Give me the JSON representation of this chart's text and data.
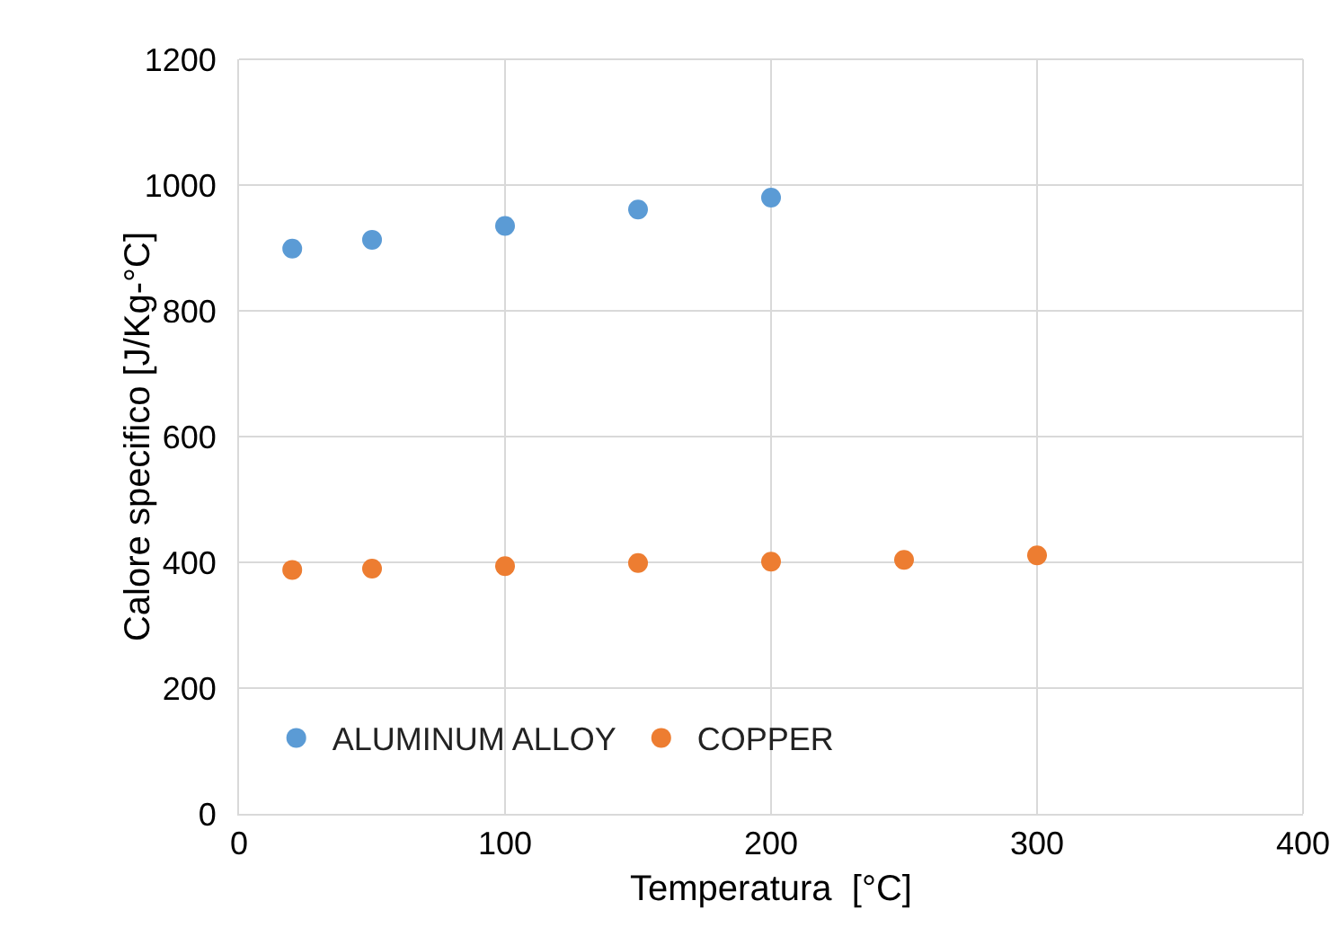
{
  "chart_data": {
    "type": "scatter",
    "xlabel": "Temperatura  [°C]",
    "ylabel": "Calore specifico [J/Kg-°C]",
    "xlim": [
      0,
      400
    ],
    "xticks": [
      0,
      100,
      200,
      300,
      400
    ],
    "ylim": [
      0,
      1200
    ],
    "yticks": [
      0,
      200,
      400,
      600,
      800,
      1000,
      1200
    ],
    "grid": true,
    "legend": "bottom left",
    "marker": "circle",
    "series": [
      {
        "name": "ALUMINUM ALLOY",
        "color": "#5b9bd5",
        "x": [
          20,
          50,
          100,
          150,
          200
        ],
        "values": [
          899,
          913,
          935,
          961,
          980
        ]
      },
      {
        "name": "COPPER",
        "color": "#ed7d31",
        "x": [
          20,
          50,
          100,
          150,
          200,
          250,
          300
        ],
        "values": [
          388,
          390,
          394,
          399,
          401,
          404,
          411
        ]
      }
    ]
  }
}
